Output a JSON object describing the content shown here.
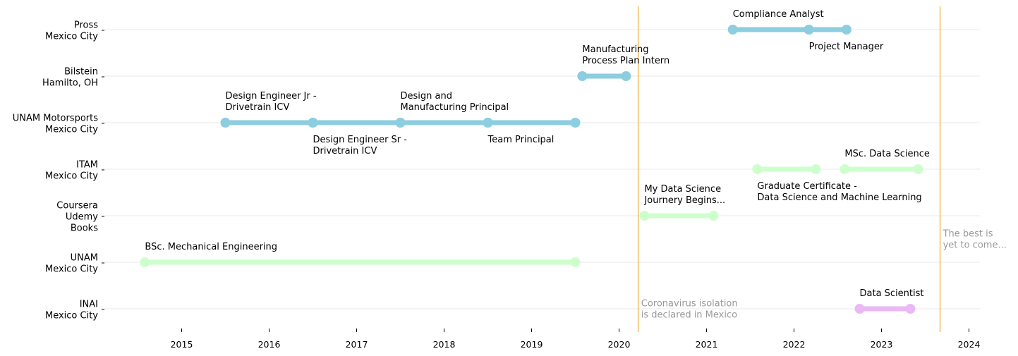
{
  "chart_data": {
    "type": "timeline",
    "title": "",
    "xlabel": "",
    "ylabel": "",
    "xlim": [
      2014.1,
      2024.1
    ],
    "x_ticks": [
      "2015",
      "2016",
      "2017",
      "2018",
      "2019",
      "2020",
      "2021",
      "2022",
      "2023",
      "2024"
    ],
    "grid": "horizontal",
    "colors": {
      "work": "#8ccde0",
      "education": "#ccffcc",
      "current": "#eab8f5",
      "vline": "#f5c97a",
      "note": "#999999",
      "grid": "#e8e8e8"
    },
    "rows": [
      {
        "label": [
          "Pross",
          "Mexico City"
        ]
      },
      {
        "label": [
          "Bilstein",
          "Hamilto, OH"
        ]
      },
      {
        "label": [
          "UNAM Motorsports",
          "Mexico City"
        ]
      },
      {
        "label": [
          "ITAM",
          "Mexico City"
        ]
      },
      {
        "label": [
          "Coursera",
          "Udemy",
          "Books"
        ]
      },
      {
        "label": [
          "UNAM",
          "Mexico City"
        ]
      },
      {
        "label": [
          "INAI",
          "Mexico City"
        ]
      }
    ],
    "segments": [
      {
        "row": 0,
        "start": 2021.3,
        "end": 2022.17,
        "category": "work"
      },
      {
        "row": 0,
        "start": 2022.17,
        "end": 2022.6,
        "category": "work"
      },
      {
        "row": 1,
        "start": 2019.58,
        "end": 2020.08,
        "category": "work"
      },
      {
        "row": 2,
        "start": 2015.5,
        "end": 2016.5,
        "category": "work"
      },
      {
        "row": 2,
        "start": 2016.5,
        "end": 2017.5,
        "category": "work"
      },
      {
        "row": 2,
        "start": 2017.5,
        "end": 2018.5,
        "category": "work"
      },
      {
        "row": 2,
        "start": 2018.5,
        "end": 2019.5,
        "category": "work"
      },
      {
        "row": 3,
        "start": 2021.58,
        "end": 2022.25,
        "category": "education"
      },
      {
        "row": 3,
        "start": 2022.58,
        "end": 2023.42,
        "category": "education"
      },
      {
        "row": 4,
        "start": 2020.29,
        "end": 2021.08,
        "category": "education"
      },
      {
        "row": 5,
        "start": 2014.58,
        "end": 2019.5,
        "category": "education"
      },
      {
        "row": 6,
        "start": 2022.75,
        "end": 2023.33,
        "category": "current"
      }
    ],
    "annotations": [
      {
        "row": 0,
        "x": 2021.3,
        "pos": "above",
        "lines": [
          "Compliance Analyst"
        ]
      },
      {
        "row": 0,
        "x": 2022.17,
        "pos": "below",
        "lines": [
          "Project Manager"
        ]
      },
      {
        "row": 1,
        "x": 2019.58,
        "pos": "above",
        "lines": [
          "Manufacturing",
          "Process Plan Intern"
        ]
      },
      {
        "row": 2,
        "x": 2015.5,
        "pos": "above",
        "lines": [
          "Design Engineer Jr -",
          "Drivetrain ICV"
        ]
      },
      {
        "row": 2,
        "x": 2016.5,
        "pos": "below",
        "lines": [
          "Design Engineer Sr -",
          "Drivetrain ICV"
        ]
      },
      {
        "row": 2,
        "x": 2017.5,
        "pos": "above",
        "lines": [
          "Design and",
          "Manufacturing Principal"
        ]
      },
      {
        "row": 2,
        "x": 2018.5,
        "pos": "below",
        "lines": [
          "Team Principal"
        ]
      },
      {
        "row": 3,
        "x": 2022.58,
        "pos": "above",
        "lines": [
          "MSc. Data Science"
        ]
      },
      {
        "row": 3,
        "x": 2021.58,
        "pos": "below",
        "lines": [
          "Graduate Certificate -",
          "Data Science and Machine Learning"
        ]
      },
      {
        "row": 4,
        "x": 2020.29,
        "pos": "above",
        "lines": [
          "My Data Science",
          "Journery Begins..."
        ]
      },
      {
        "row": 5,
        "x": 2014.58,
        "pos": "above",
        "lines": [
          "BSc. Mechanical Engineering"
        ]
      },
      {
        "row": 6,
        "x": 2022.75,
        "pos": "above",
        "lines": [
          "Data Scientist"
        ]
      }
    ],
    "vlines": [
      {
        "x": 2020.22,
        "note": [
          "Coronavirus isolation",
          "is declared in Mexico"
        ],
        "note_row": 6
      },
      {
        "x": 2023.67,
        "note": [
          "The best is",
          "yet to come..."
        ],
        "note_row": 4.5
      }
    ]
  }
}
